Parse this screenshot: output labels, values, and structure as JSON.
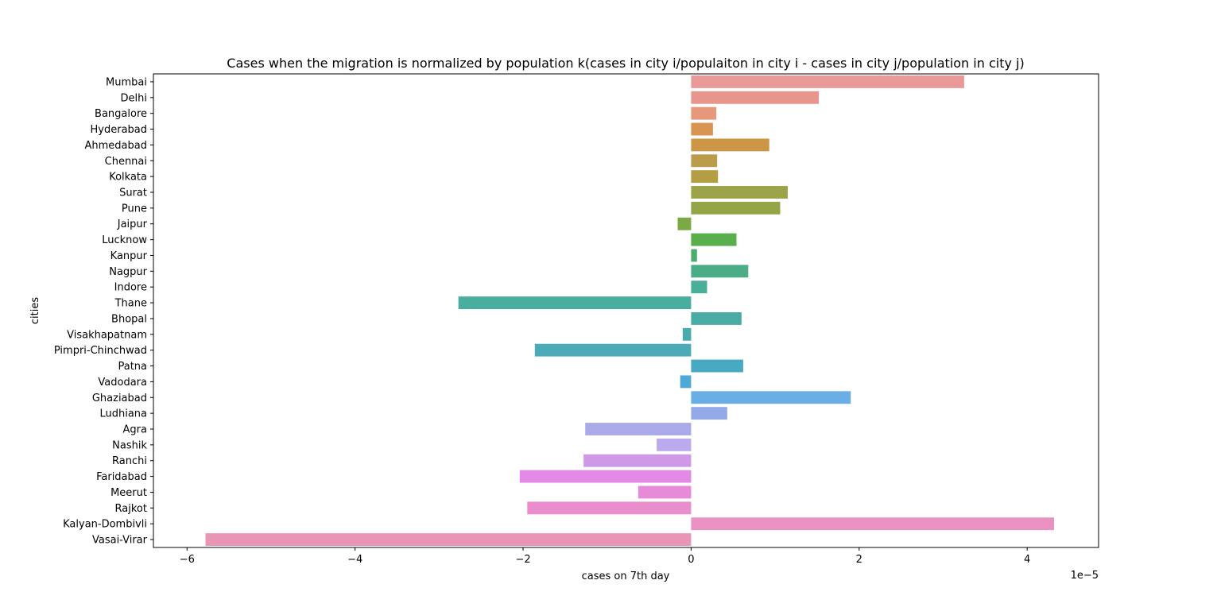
{
  "chart_data": {
    "type": "bar",
    "orientation": "horizontal",
    "title": "Cases when the migration is normalized by population k(cases in city i/populaiton in city i - cases in city j/population in city j)",
    "xlabel": "cases on 7th day",
    "ylabel": "cities",
    "x_offset_label": "1e−5",
    "xlim": [
      -6.4,
      4.85
    ],
    "xticks": [
      -6,
      -4,
      -2,
      0,
      2,
      4
    ],
    "xtick_labels": [
      "−6",
      "−4",
      "−2",
      "0",
      "2",
      "4"
    ],
    "grid": false,
    "categories": [
      "Mumbai",
      "Delhi",
      "Bangalore",
      "Hyderabad",
      "Ahmedabad",
      "Chennai",
      "Kolkata",
      "Surat",
      "Pune",
      "Jaipur",
      "Lucknow",
      "Kanpur",
      "Nagpur",
      "Indore",
      "Thane",
      "Bhopal",
      "Visakhapatnam",
      "Pimpri-Chinchwad",
      "Patna",
      "Vadodara",
      "Ghaziabad",
      "Ludhiana",
      "Agra",
      "Nashik",
      "Ranchi",
      "Faridabad",
      "Meerut",
      "Rajkot",
      "Kalyan-Dombivli",
      "Vasai-Virar"
    ],
    "values": [
      3.25,
      1.52,
      0.3,
      0.26,
      0.93,
      0.31,
      0.32,
      1.15,
      1.06,
      -0.16,
      0.54,
      0.07,
      0.68,
      0.19,
      -2.77,
      0.6,
      -0.1,
      -1.86,
      0.62,
      -0.13,
      1.9,
      0.43,
      -1.26,
      -0.41,
      -1.28,
      -2.04,
      -0.63,
      -1.95,
      4.32,
      -5.78
    ],
    "colors": [
      "#ea9999",
      "#e8968b",
      "#e7977a",
      "#d99451",
      "#cc9646",
      "#ba9c4a",
      "#b39e43",
      "#9da348",
      "#93a547",
      "#7ba946",
      "#5aae4b",
      "#4fad6c",
      "#4aad86",
      "#4aaf98",
      "#4aae9f",
      "#48aca5",
      "#49abad",
      "#4dabb8",
      "#48a9c3",
      "#4fa9d7",
      "#6aaee6",
      "#94a9e8",
      "#abaae9",
      "#bbaaee",
      "#cf99e8",
      "#e389e6",
      "#e98ad9",
      "#ea8dcc",
      "#e992c1",
      "#e995b5"
    ]
  }
}
